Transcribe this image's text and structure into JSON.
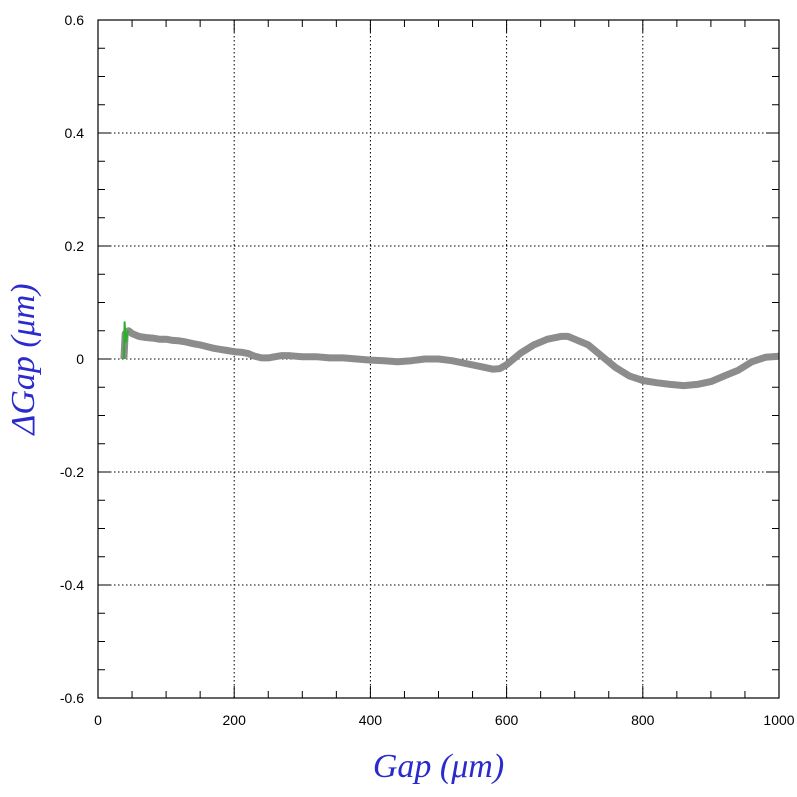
{
  "chart_data": {
    "type": "line",
    "title": "",
    "xlabel": "Gap  (μm)",
    "ylabel": "ΔGap  (μm)",
    "xlim": [
      0,
      1000
    ],
    "ylim": [
      -0.6,
      0.6
    ],
    "x_ticks": [
      0,
      200,
      400,
      600,
      800,
      1000
    ],
    "x_tick_labels": [
      "0",
      "200",
      "400",
      "600",
      "800",
      "1000"
    ],
    "y_ticks": [
      -0.6,
      -0.4,
      -0.2,
      0,
      0.2,
      0.4,
      0.6
    ],
    "y_tick_labels": [
      "-0.6",
      "-0.4",
      "-0.2",
      "0",
      "0.2",
      "0.4",
      "0.6"
    ],
    "grid": true,
    "label_color": "#2a2acd",
    "series": [
      {
        "color": "#8c8c8c",
        "x": [
          38,
          40,
          45,
          50,
          60,
          70,
          80,
          90,
          100,
          110,
          120,
          130,
          140,
          150,
          160,
          170,
          180,
          190,
          200,
          210,
          220,
          230,
          240,
          250,
          260,
          270,
          280,
          290,
          300,
          320,
          340,
          360,
          380,
          400,
          420,
          440,
          460,
          480,
          500,
          520,
          540,
          560,
          580,
          590,
          600,
          620,
          640,
          660,
          680,
          690,
          700,
          720,
          740,
          760,
          780,
          800,
          820,
          840,
          860,
          880,
          900,
          920,
          940,
          960,
          980,
          1000
        ],
        "y": [
          0.0,
          0.045,
          0.05,
          0.045,
          0.04,
          0.038,
          0.037,
          0.035,
          0.035,
          0.033,
          0.032,
          0.03,
          0.027,
          0.025,
          0.022,
          0.019,
          0.017,
          0.015,
          0.013,
          0.012,
          0.01,
          0.005,
          0.002,
          0.002,
          0.004,
          0.006,
          0.006,
          0.005,
          0.004,
          0.004,
          0.002,
          0.002,
          0.0,
          -0.002,
          -0.003,
          -0.005,
          -0.003,
          0.0,
          0.0,
          -0.003,
          -0.008,
          -0.013,
          -0.018,
          -0.017,
          -0.01,
          0.01,
          0.025,
          0.035,
          0.04,
          0.04,
          0.035,
          0.025,
          0.005,
          -0.015,
          -0.03,
          -0.038,
          -0.042,
          -0.045,
          -0.047,
          -0.045,
          -0.04,
          -0.03,
          -0.02,
          -0.005,
          0.003,
          0.005
        ]
      },
      {
        "color": "#2ab02a",
        "x": [
          38,
          39,
          41,
          44
        ],
        "y": [
          0.0,
          0.065,
          0.03,
          0.05
        ]
      }
    ]
  }
}
